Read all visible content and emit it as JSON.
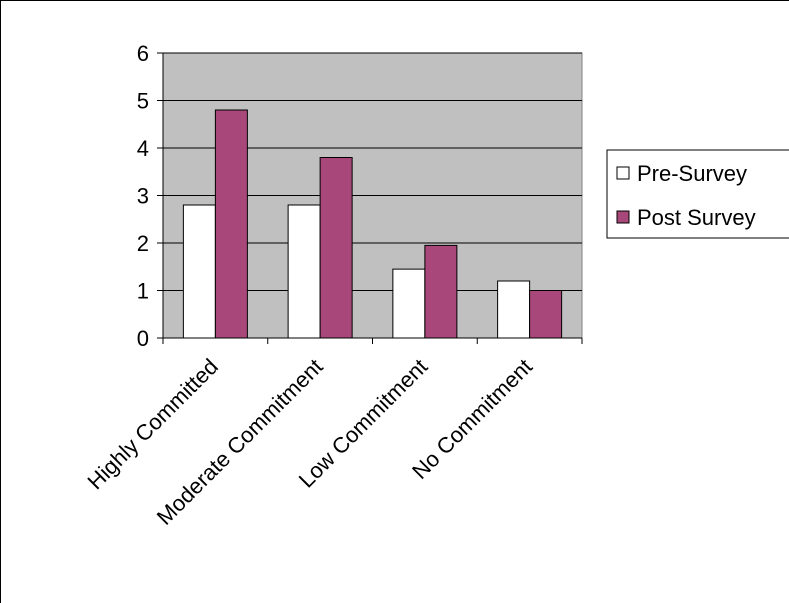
{
  "chart_data": {
    "type": "bar",
    "title": "",
    "xlabel": "",
    "ylabel": "",
    "categories": [
      "Highly Committed",
      "Moderate Commitment",
      "Low Commitment",
      "No Commitment"
    ],
    "series": [
      {
        "name": "Pre-Survey",
        "values": [
          2.8,
          2.8,
          1.45,
          1.2
        ],
        "color": "#ffffff"
      },
      {
        "name": "Post Survey",
        "values": [
          4.8,
          3.8,
          1.95,
          1.0
        ],
        "color": "#a8487a"
      }
    ],
    "ylim": [
      0,
      6
    ],
    "yticks": [
      "0",
      "1",
      "2",
      "3",
      "4",
      "5",
      "6"
    ],
    "grid": true,
    "plot_background": "#c0c0c0",
    "legend_position": "right"
  }
}
